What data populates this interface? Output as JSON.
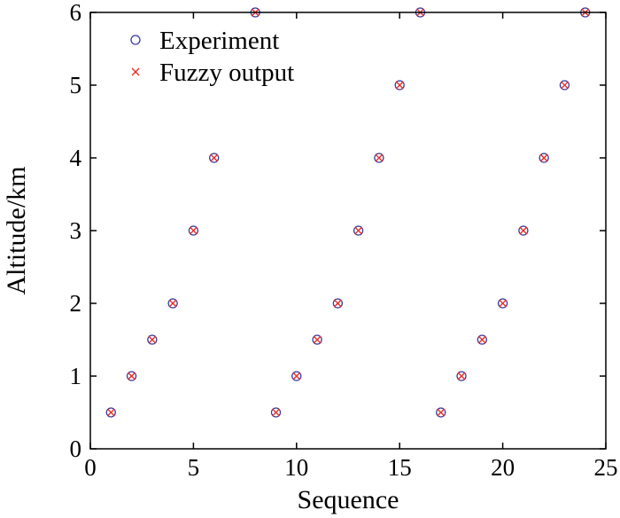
{
  "chart_data": {
    "type": "scatter",
    "xlabel": "Sequence",
    "ylabel": "Altitude/km",
    "xlim": [
      0,
      25
    ],
    "ylim": [
      0,
      6
    ],
    "xticks": [
      "0",
      "5",
      "10",
      "15",
      "20",
      "25"
    ],
    "yticks": [
      "0",
      "1",
      "2",
      "3",
      "4",
      "5",
      "6"
    ],
    "grid": false,
    "legend_position": "top-left",
    "series": [
      {
        "name": "Experiment",
        "marker": "circle",
        "color": "#3b3b9b",
        "x": [
          1,
          2,
          3,
          4,
          5,
          6,
          8,
          9,
          10,
          11,
          12,
          13,
          14,
          15,
          16,
          17,
          18,
          19,
          20,
          21,
          22,
          23,
          24
        ],
        "y": [
          0.5,
          1,
          1.5,
          2,
          3,
          4,
          6,
          0.5,
          1,
          1.5,
          2,
          3,
          4,
          5,
          6,
          0.5,
          1,
          1.5,
          2,
          3,
          4,
          5,
          6
        ]
      },
      {
        "name": "Fuzzy output",
        "marker": "x",
        "color": "#e8302a",
        "x": [
          1,
          2,
          3,
          4,
          5,
          6,
          8,
          9,
          10,
          11,
          12,
          13,
          14,
          15,
          16,
          17,
          18,
          19,
          20,
          21,
          22,
          23,
          24
        ],
        "y": [
          0.5,
          1,
          1.5,
          2,
          3,
          4,
          6,
          0.5,
          1,
          1.5,
          2,
          3,
          4,
          5,
          6,
          0.5,
          1,
          1.5,
          2,
          3,
          4,
          5,
          6
        ]
      }
    ]
  }
}
